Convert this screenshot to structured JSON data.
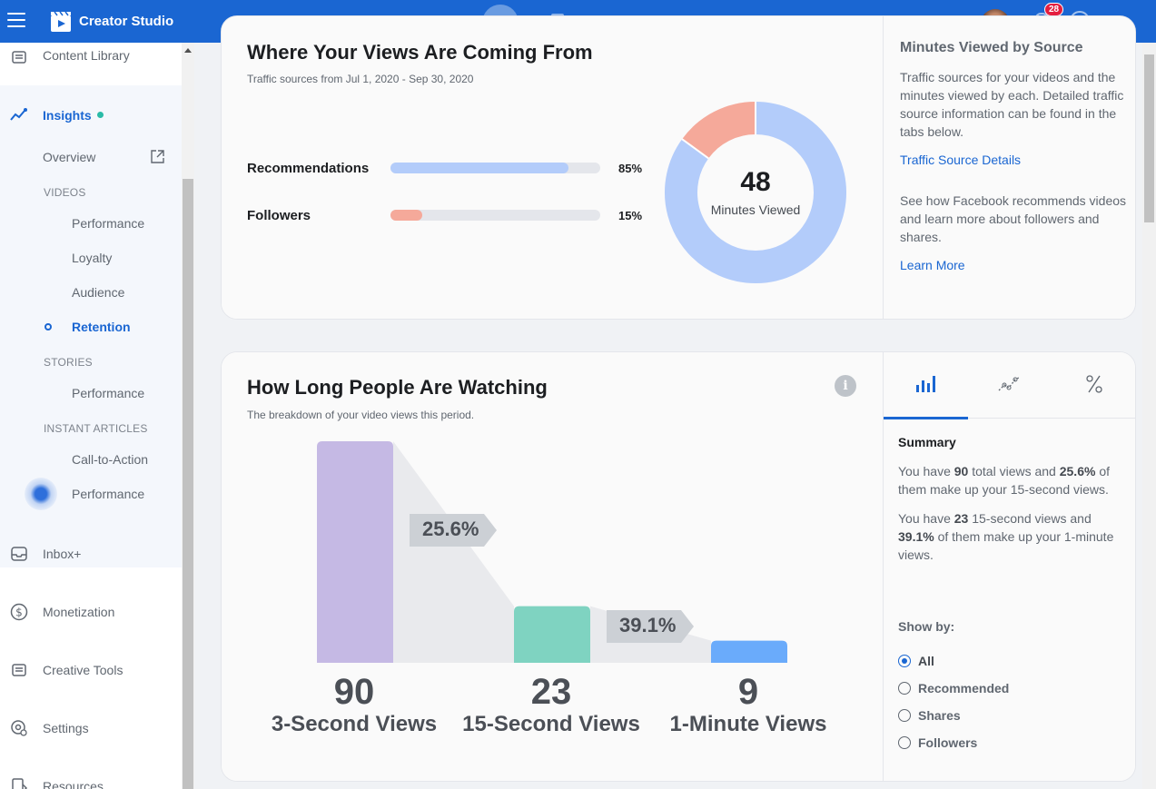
{
  "app": {
    "title": "Creator Studio",
    "notification_count": "28"
  },
  "sidebar": {
    "content_library": "Content Library",
    "insights": "Insights",
    "overview": "Overview",
    "sections": {
      "videos": "VIDEOS",
      "stories": "STORIES",
      "instant_articles": "INSTANT ARTICLES"
    },
    "videos_items": [
      "Performance",
      "Loyalty",
      "Audience",
      "Retention"
    ],
    "stories_items": [
      "Performance"
    ],
    "instant_items": [
      "Call-to-Action",
      "Performance"
    ],
    "inbox": "Inbox+",
    "monetization": "Monetization",
    "creative_tools": "Creative Tools",
    "settings": "Settings",
    "resources": "Resources",
    "accent_color": "#1a66d2"
  },
  "views_card": {
    "title": "Where Your Views Are Coming From",
    "subtitle": "Traffic sources from Jul 1, 2020 - Sep 30, 2020",
    "sources": [
      {
        "label": "Recommendations",
        "pct_label": "85%",
        "value": 0.85,
        "color": "#b3ccfa"
      },
      {
        "label": "Followers",
        "pct_label": "15%",
        "value": 0.15,
        "color": "#f5a99a"
      }
    ],
    "donut_value": "48",
    "donut_caption": "Minutes Viewed",
    "right": {
      "title": "Minutes Viewed by Source",
      "text1": "Traffic sources for your videos and the minutes viewed by each. Detailed traffic source information can be found in the tabs below.",
      "link1": "Traffic Source Details",
      "text2": "See how Facebook recommends videos and learn more about followers and shares.",
      "link2": "Learn More"
    }
  },
  "watch_card": {
    "title": "How Long People Are Watching",
    "subtitle": "The breakdown of your video views this period.",
    "chart_data": {
      "type": "bar",
      "categories": [
        "3-Second Views",
        "15-Second Views",
        "1-Minute Views"
      ],
      "values": [
        90,
        23,
        9
      ],
      "value_labels": [
        "90",
        "23",
        "9"
      ],
      "colors": [
        "#c5b9e4",
        "#7fd3c1",
        "#6aabfb"
      ],
      "drop_labels": [
        "25.6%",
        "39.1%"
      ]
    },
    "summary": {
      "title": "Summary",
      "p1_a": "You have ",
      "p1_b": "90",
      "p1_c": " total views and ",
      "p1_d": "25.6%",
      "p1_e": " of them make up your 15-second views.",
      "p2_a": "You have ",
      "p2_b": "23",
      "p2_c": " 15-second views and ",
      "p2_d": "39.1%",
      "p2_e": " of them make up your 1-minute views."
    },
    "show_by": {
      "label": "Show by:",
      "options": [
        "All",
        "Recommended",
        "Shares",
        "Followers"
      ],
      "selected": "All"
    }
  }
}
